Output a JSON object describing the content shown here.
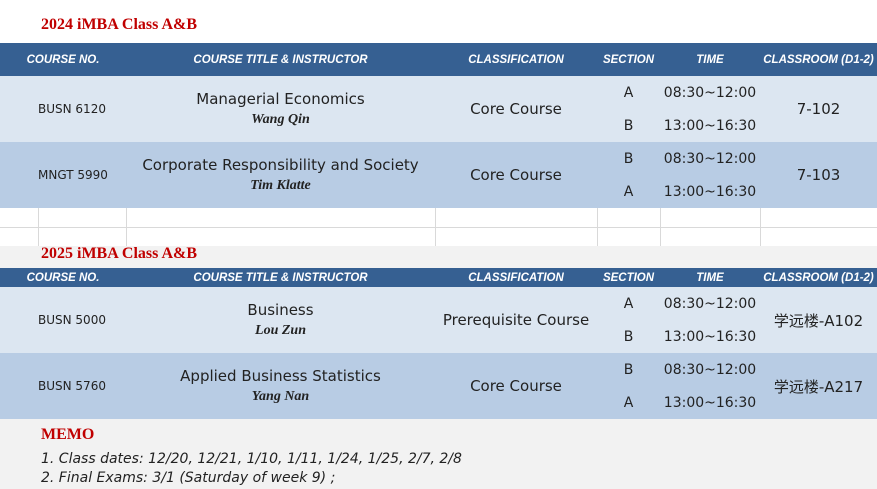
{
  "sections": [
    {
      "title": "2024 iMBA Class A&B",
      "header": [
        "COURSE NO.",
        "COURSE TITLE & INSTRUCTOR",
        "CLASSIFICATION",
        "SECTION",
        "TIME",
        "CLASSROOM (D1-2)"
      ],
      "rows": [
        {
          "course_no": "BUSN 6120",
          "course_title": "Managerial Economics",
          "instructor": "Wang Qin",
          "classification": "Core Course",
          "sessions": [
            {
              "section": "A",
              "time": "08:30~12:00"
            },
            {
              "section": "B",
              "time": "13:00~16:30"
            }
          ],
          "classroom": "7-102"
        },
        {
          "course_no": "MNGT 5990",
          "course_title": "Corporate Responsibility and Society",
          "instructor": "Tim Klatte",
          "classification": "Core Course",
          "sessions": [
            {
              "section": "B",
              "time": "08:30~12:00"
            },
            {
              "section": "A",
              "time": "13:00~16:30"
            }
          ],
          "classroom": "7-103"
        }
      ]
    },
    {
      "title": "2025 iMBA Class A&B",
      "header": [
        "COURSE NO.",
        "COURSE TITLE & INSTRUCTOR",
        "CLASSIFICATION",
        "SECTION",
        "TIME",
        "CLASSROOM (D1-2)"
      ],
      "rows": [
        {
          "course_no": "BUSN 5000",
          "course_title": "Business",
          "instructor": "Lou Zun",
          "classification": "Prerequisite Course",
          "sessions": [
            {
              "section": "A",
              "time": "08:30~12:00"
            },
            {
              "section": "B",
              "time": "13:00~16:30"
            }
          ],
          "classroom": "学远楼-A102"
        },
        {
          "course_no": "BUSN 5760",
          "course_title": "Applied Business Statistics",
          "instructor": "Yang Nan",
          "classification": "Core Course",
          "sessions": [
            {
              "section": "B",
              "time": "08:30~12:00"
            },
            {
              "section": "A",
              "time": "13:00~16:30"
            }
          ],
          "classroom": "学远楼-A217"
        }
      ]
    }
  ],
  "memo": {
    "title": "MEMO",
    "items": [
      "1. Class dates: 12/20, 12/21, 1/10, 1/11, 1/24, 1/25, 2/7, 2/8",
      "2. Final Exams: 3/1 (Saturday of week 9) ;"
    ]
  }
}
